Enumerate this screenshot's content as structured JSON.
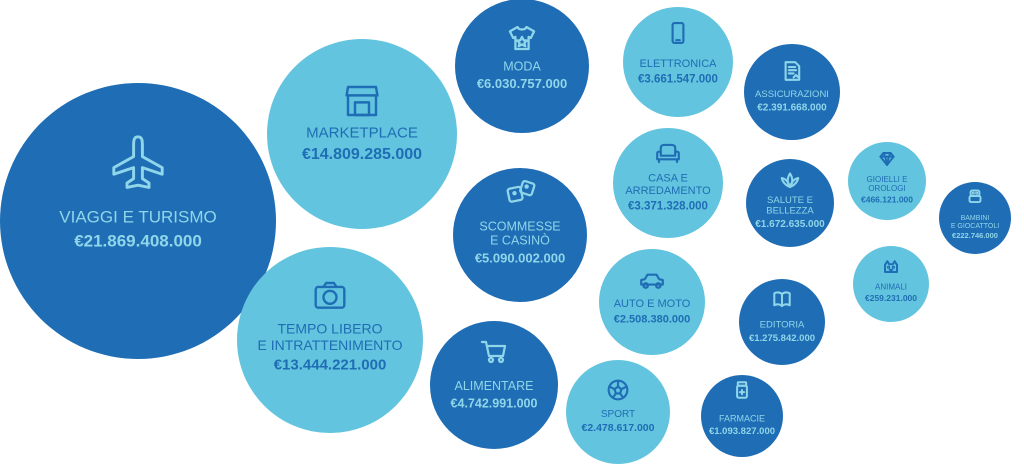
{
  "chart_data": {
    "type": "bubble",
    "colors": {
      "dark": "#1f6db4",
      "light": "#62c4de",
      "text_on_dark": "#8fd6ea",
      "text_on_light": "#1f6db4"
    },
    "items": [
      {
        "label": [
          "VIAGGI E TURISMO"
        ],
        "value_text": "€21.869.408.000",
        "value": 21869408000,
        "tone": "dark",
        "icon": "airplane-icon"
      },
      {
        "label": [
          "MARKETPLACE"
        ],
        "value_text": "€14.809.285.000",
        "value": 14809285000,
        "tone": "light",
        "icon": "store-icon"
      },
      {
        "label": [
          "TEMPO LIBERO",
          "E INTRATTENIMENTO"
        ],
        "value_text": "€13.444.221.000",
        "value": 13444221000,
        "tone": "light",
        "icon": "camera-icon"
      },
      {
        "label": [
          "MODA"
        ],
        "value_text": "€6.030.757.000",
        "value": 6030757000,
        "tone": "dark",
        "icon": "tshirt-icon"
      },
      {
        "label": [
          "SCOMMESSE",
          "E CASINÒ"
        ],
        "value_text": "€5.090.002.000",
        "value": 5090002000,
        "tone": "dark",
        "icon": "dice-icon"
      },
      {
        "label": [
          "ALIMENTARE"
        ],
        "value_text": "€4.742.991.000",
        "value": 4742991000,
        "tone": "dark",
        "icon": "cart-icon"
      },
      {
        "label": [
          "ELETTRONICA"
        ],
        "value_text": "€3.661.547.000",
        "value": 3661547000,
        "tone": "light",
        "icon": "smartphone-icon"
      },
      {
        "label": [
          "CASA E",
          "ARREDAMENTO"
        ],
        "value_text": "€3.371.328.000",
        "value": 3371328000,
        "tone": "light",
        "icon": "sofa-icon"
      },
      {
        "label": [
          "AUTO E MOTO"
        ],
        "value_text": "€2.508.380.000",
        "value": 2508380000,
        "tone": "light",
        "icon": "car-icon"
      },
      {
        "label": [
          "SPORT"
        ],
        "value_text": "€2.478.617.000",
        "value": 2478617000,
        "tone": "light",
        "icon": "soccer-ball-icon"
      },
      {
        "label": [
          "ASSICURAZIONI"
        ],
        "value_text": "€2.391.668.000",
        "value": 2391668000,
        "tone": "dark",
        "icon": "document-icon"
      },
      {
        "label": [
          "SALUTE E",
          "BELLEZZA"
        ],
        "value_text": "€1.672.635.000",
        "value": 1672635000,
        "tone": "dark",
        "icon": "lotus-icon"
      },
      {
        "label": [
          "EDITORIA"
        ],
        "value_text": "€1.275.842.000",
        "value": 1275842000,
        "tone": "dark",
        "icon": "book-icon"
      },
      {
        "label": [
          "FARMACIE"
        ],
        "value_text": "€1.093.827.000",
        "value": 1093827000,
        "tone": "dark",
        "icon": "pill-bottle-icon"
      },
      {
        "label": [
          "GIOIELLI E",
          "OROLOGI"
        ],
        "value_text": "€466.121.000",
        "value": 466121000,
        "tone": "light",
        "icon": "diamond-icon"
      },
      {
        "label": [
          "ANIMALI"
        ],
        "value_text": "€259.231.000",
        "value": 259231000,
        "tone": "light",
        "icon": "pet-icon"
      },
      {
        "label": [
          "BAMBINI",
          "E GIOCATTOLI"
        ],
        "value_text": "€222.746.000",
        "value": 222746000,
        "tone": "dark",
        "icon": "toy-icon"
      }
    ]
  }
}
